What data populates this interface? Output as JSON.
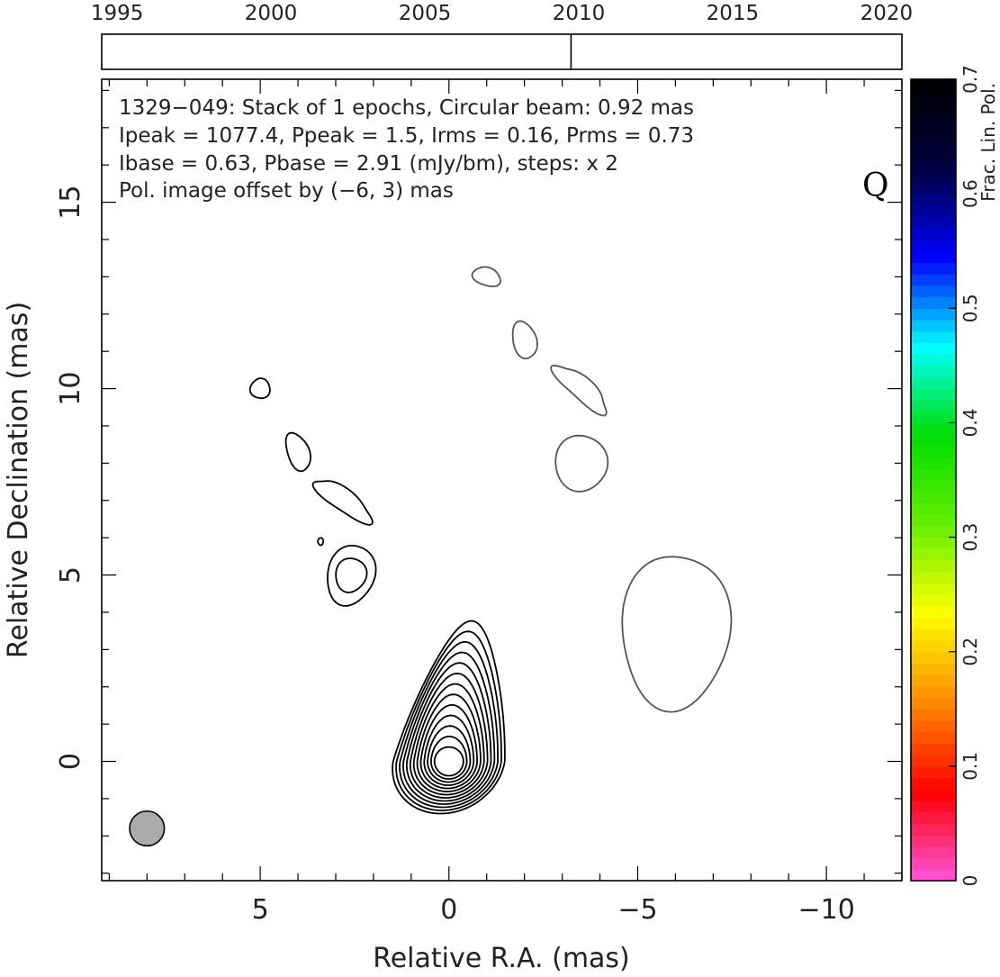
{
  "chart_data": {
    "type": "contour",
    "timeline": {
      "tick_labels": [
        "1995",
        "2000",
        "2005",
        "2010",
        "2015",
        "2020"
      ],
      "x_range_years": [
        1994.5,
        2020.5
      ],
      "epochs": [
        2009.75
      ]
    },
    "annotations": {
      "line1": "1329−049: Stack of 1 epochs, Circular beam: 0.92 mas",
      "line2": "Ipeak = 1077.4, Ppeak = 1.5, Irms = 0.16, Prms = 0.73",
      "line3": "Ibase = 0.63, Pbase = 2.91 (mJy/bm), steps: x 2",
      "line4": "Pol. image offset by (−6, 3) mas",
      "line4_color": "#1e8fe8",
      "quality_flag": "Q"
    },
    "axes": {
      "xlabel": "Relative R.A. (mas)",
      "ylabel": "Relative Declination (mas)",
      "xlim": [
        9.2,
        -12.0
      ],
      "ylim": [
        -3.2,
        18.3
      ],
      "x_ticks": [
        5,
        0,
        -5,
        -10
      ],
      "x_tick_labels": [
        "5",
        "0",
        "−5",
        "−10"
      ],
      "y_ticks": [
        0,
        5,
        10,
        15
      ],
      "y_tick_labels": [
        "0",
        "5",
        "10",
        "15"
      ],
      "grid": false
    },
    "beam": {
      "ra": 8.0,
      "dec": -1.8,
      "diameter_mas": 0.92,
      "color": "#aaaaaa"
    },
    "core": {
      "ra": 0.0,
      "dec": 0.0,
      "levels": 13
    },
    "total_intensity_components": [
      {
        "ra": 5.0,
        "dec": 10.0,
        "levels": 1
      },
      {
        "ra": 4.0,
        "dec": 8.3,
        "levels": 1
      },
      {
        "ra": 2.8,
        "dec": 7.0,
        "levels": 1
      },
      {
        "ra": 2.6,
        "dec": 5.0,
        "levels": 2
      },
      {
        "ra": 3.4,
        "dec": 5.9,
        "levels": 1
      }
    ],
    "polarization_components": [
      {
        "ra": -1.0,
        "dec": 13.0
      },
      {
        "ra": -2.0,
        "dec": 11.3
      },
      {
        "ra": -3.5,
        "dec": 10.0
      },
      {
        "ra": -3.5,
        "dec": 8.0
      },
      {
        "ra": -6.0,
        "dec": 3.5
      }
    ],
    "colorbar": {
      "label": "Frac. Lin. Pol.",
      "range": [
        0,
        0.7
      ],
      "ticks": [
        0,
        0.1,
        0.2,
        0.3,
        0.4,
        0.5,
        0.6,
        0.7
      ],
      "tick_labels": [
        "0",
        "0.1",
        "0.2",
        "0.3",
        "0.4",
        "0.5",
        "0.6",
        "0.7"
      ],
      "colors": [
        "#ff55dd",
        "#ff0000",
        "#ff8800",
        "#ffff00",
        "#66ee00",
        "#00dd00",
        "#00ffff",
        "#0000ff",
        "#000040",
        "#000000"
      ]
    }
  }
}
